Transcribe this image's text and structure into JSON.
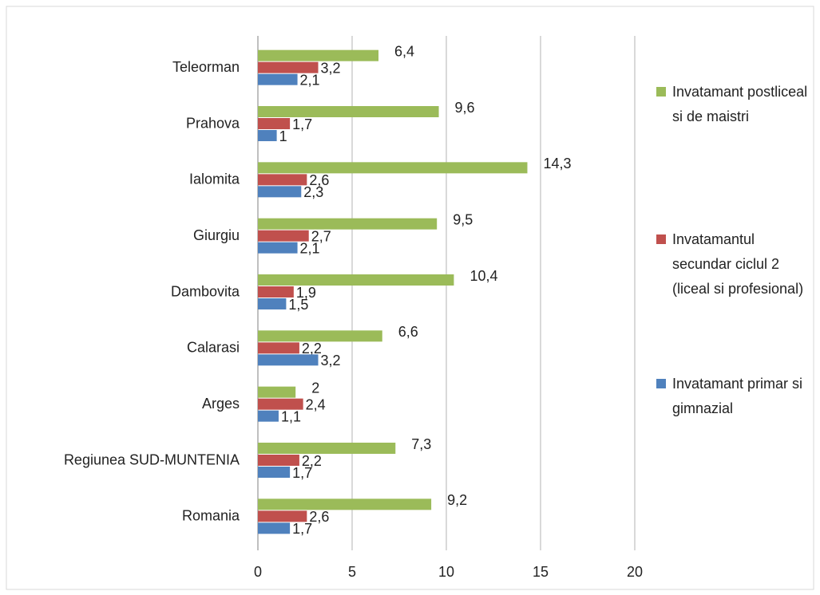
{
  "chart_data": {
    "type": "barh",
    "categories": [
      "Teleorman",
      "Prahova",
      "Ialomita",
      "Giurgiu",
      "Dambovita",
      "Calarasi",
      "Arges",
      "Regiunea SUD-MUNTENIA",
      "Romania"
    ],
    "series": [
      {
        "name": "Invatamant postliceal si de maistri",
        "color": "#9bbb59",
        "values": [
          6.4,
          9.6,
          14.3,
          9.5,
          10.4,
          6.6,
          2,
          7.3,
          9.2
        ],
        "value_labels": [
          "6,4",
          "9,6",
          "14,3",
          "9,5",
          "10,4",
          "6,6",
          "2",
          "7,3",
          "9,2"
        ]
      },
      {
        "name": "Invatamantul secundar ciclul 2 (liceal si profesional)",
        "color": "#c0504d",
        "values": [
          3.2,
          1.7,
          2.6,
          2.7,
          1.9,
          2.2,
          2.4,
          2.2,
          2.6
        ],
        "value_labels": [
          "3,2",
          "1,7",
          "2,6",
          "2,7",
          "1,9",
          "2,2",
          "2,4",
          "2,2",
          "2,6"
        ]
      },
      {
        "name": "Invatamant primar si gimnazial",
        "color": "#4f81bd",
        "values": [
          2.1,
          1,
          2.3,
          2.1,
          1.5,
          3.2,
          1.1,
          1.7,
          1.7
        ],
        "value_labels": [
          "2,1",
          "1",
          "2,3",
          "2,1",
          "1,5",
          "3,2",
          "1,1",
          "1,7",
          "1,7"
        ]
      }
    ],
    "xlim": [
      0,
      20
    ],
    "xticks": [
      0,
      5,
      10,
      15,
      20
    ],
    "grid": true,
    "legend": "right"
  }
}
